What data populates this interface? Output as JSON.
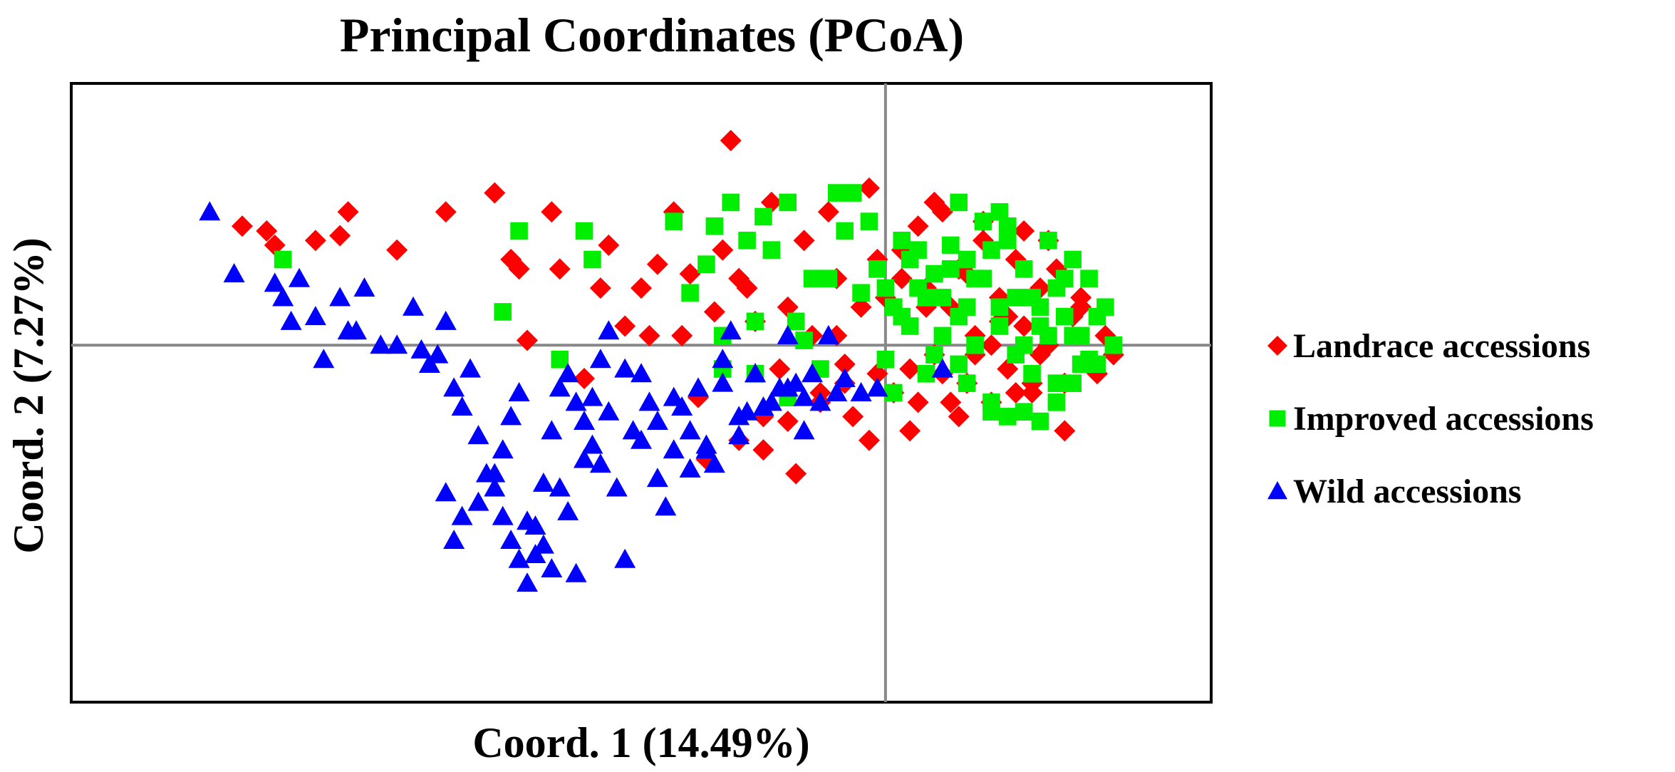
{
  "chart_data": {
    "type": "scatter",
    "title": "Principal Coordinates (PCoA)",
    "xlabel": "Coord. 1 (14.49%)",
    "ylabel": "Coord. 2 (7.27%)",
    "xlim": [
      -1,
      0.4
    ],
    "ylim": [
      -0.75,
      0.55
    ],
    "grid": false,
    "reference_lines": {
      "x": 0,
      "y": 0
    },
    "legend_position": "right",
    "series": [
      {
        "name": "Landrace accessions",
        "marker": "diamond",
        "color": "#ff0000",
        "x": [
          -0.79,
          -0.76,
          -0.75,
          -0.7,
          -0.67,
          -0.66,
          -0.6,
          -0.54,
          -0.48,
          -0.46,
          -0.45,
          -0.44,
          -0.41,
          -0.4,
          -0.37,
          -0.35,
          -0.34,
          -0.32,
          -0.3,
          -0.29,
          -0.28,
          -0.26,
          -0.24,
          -0.23,
          -0.22,
          -0.21,
          -0.2,
          -0.19,
          -0.18,
          -0.17,
          -0.16,
          -0.15,
          -0.14,
          -0.13,
          -0.12,
          -0.11,
          -0.1,
          -0.09,
          -0.08,
          -0.07,
          -0.06,
          -0.05,
          -0.04,
          -0.03,
          -0.02,
          -0.01,
          0.0,
          0.01,
          0.02,
          0.03,
          0.04,
          0.05,
          0.06,
          0.07,
          0.08,
          0.09,
          0.1,
          0.11,
          0.12,
          0.13,
          0.14,
          0.15,
          0.16,
          0.17,
          0.18,
          0.19,
          0.2,
          0.21,
          0.22,
          0.23,
          0.24,
          0.25,
          0.26,
          0.27,
          0.28,
          -0.15,
          -0.08,
          -0.05,
          -0.02,
          0.04,
          0.06,
          0.1,
          0.12,
          0.16,
          0.2,
          0.22,
          0.14,
          0.08,
          0.02,
          -0.01,
          0.05,
          0.09,
          0.13,
          0.17,
          0.19,
          -0.25,
          -0.18,
          -0.12,
          -0.06,
          0.03,
          0.07,
          0.11,
          0.15,
          0.18,
          0.24
        ],
        "y": [
          0.25,
          0.24,
          0.21,
          0.22,
          0.23,
          0.28,
          0.2,
          0.28,
          0.32,
          0.18,
          0.16,
          0.01,
          0.28,
          0.16,
          -0.07,
          0.12,
          0.21,
          0.04,
          0.12,
          0.02,
          0.17,
          0.28,
          0.15,
          -0.11,
          -0.24,
          0.07,
          0.2,
          0.43,
          -0.2,
          0.12,
          0.05,
          -0.15,
          0.3,
          -0.05,
          0.08,
          -0.27,
          0.22,
          0.02,
          -0.1,
          0.28,
          0.14,
          -0.04,
          -0.15,
          0.08,
          0.33,
          0.18,
          0.1,
          -0.1,
          0.2,
          -0.05,
          0.25,
          0.12,
          -0.02,
          0.28,
          0.08,
          -0.15,
          0.15,
          0.02,
          0.22,
          -0.12,
          0.1,
          -0.05,
          0.18,
          0.04,
          -0.1,
          0.12,
          0.0,
          0.16,
          -0.08,
          0.06,
          0.1,
          -0.04,
          -0.06,
          0.02,
          -0.02,
          -0.22,
          -0.12,
          -0.08,
          -0.2,
          -0.12,
          0.3,
          -0.08,
          0.26,
          -0.1,
          0.22,
          -0.18,
          0.05,
          -0.12,
          0.14,
          -0.06,
          0.08,
          0.16,
          0.0,
          0.24,
          -0.02,
          0.02,
          0.14,
          -0.16,
          0.02,
          -0.18,
          -0.06,
          -0.02,
          0.06,
          -0.08,
          0.08
        ]
      },
      {
        "name": "Improved accessions",
        "marker": "square",
        "color": "#00ee00",
        "x": [
          -0.74,
          -0.45,
          -0.37,
          -0.36,
          -0.47,
          -0.4,
          -0.26,
          -0.21,
          -0.19,
          -0.17,
          -0.15,
          -0.12,
          -0.11,
          -0.09,
          -0.06,
          -0.05,
          -0.04,
          -0.03,
          -0.02,
          -0.01,
          0.0,
          0.01,
          0.02,
          0.03,
          0.04,
          0.05,
          0.06,
          0.07,
          0.08,
          0.09,
          0.1,
          0.11,
          0.12,
          0.13,
          0.14,
          0.15,
          0.16,
          0.17,
          0.18,
          0.19,
          0.2,
          0.21,
          0.22,
          0.23,
          0.24,
          0.25,
          0.26,
          0.27,
          0.28,
          -0.24,
          -0.22,
          -0.2,
          -0.16,
          -0.14,
          -0.1,
          -0.08,
          -0.07,
          0.0,
          0.02,
          0.04,
          0.06,
          0.08,
          0.1,
          0.12,
          0.14,
          0.16,
          0.18,
          0.2,
          0.22,
          0.24,
          0.26,
          -0.16,
          -0.2,
          -0.12,
          0.01,
          0.03,
          0.05,
          0.07,
          0.09,
          0.11,
          0.13,
          0.15,
          0.17,
          0.19,
          0.21,
          0.23,
          0.25,
          0.13,
          0.15,
          0.17,
          0.19,
          0.21,
          0.23,
          0.09,
          0.14,
          0.1
        ],
        "y": [
          0.18,
          0.24,
          0.24,
          0.18,
          0.07,
          -0.03,
          0.26,
          0.25,
          0.3,
          0.22,
          0.27,
          0.3,
          0.05,
          0.14,
          0.32,
          0.24,
          0.32,
          0.11,
          0.26,
          0.16,
          0.12,
          0.08,
          0.22,
          0.04,
          0.2,
          0.1,
          0.15,
          0.02,
          0.21,
          0.06,
          0.18,
          0.0,
          0.14,
          0.2,
          0.08,
          0.25,
          -0.02,
          0.16,
          0.1,
          0.04,
          0.22,
          0.12,
          0.06,
          0.18,
          0.02,
          0.14,
          -0.04,
          0.08,
          0.0,
          0.11,
          0.17,
          0.02,
          -0.06,
          0.2,
          0.01,
          -0.05,
          0.14,
          -0.03,
          0.06,
          0.12,
          -0.02,
          0.16,
          -0.08,
          0.26,
          0.04,
          0.1,
          -0.06,
          0.02,
          0.14,
          -0.04,
          0.06,
          0.05,
          -0.05,
          -0.11,
          -0.1,
          0.18,
          -0.06,
          0.1,
          -0.04,
          0.14,
          -0.12,
          0.22,
          0.0,
          0.08,
          -0.08,
          0.02,
          -0.03,
          -0.14,
          -0.15,
          -0.14,
          -0.16,
          -0.12,
          -0.08,
          0.3,
          0.28,
          0.08
        ]
      },
      {
        "name": "Wild accessions",
        "marker": "triangle",
        "color": "#0000ff",
        "x": [
          -0.83,
          -0.8,
          -0.75,
          -0.74,
          -0.73,
          -0.72,
          -0.7,
          -0.69,
          -0.67,
          -0.66,
          -0.65,
          -0.64,
          -0.62,
          -0.6,
          -0.58,
          -0.57,
          -0.56,
          -0.55,
          -0.54,
          -0.53,
          -0.52,
          -0.51,
          -0.5,
          -0.49,
          -0.48,
          -0.47,
          -0.46,
          -0.45,
          -0.44,
          -0.43,
          -0.42,
          -0.41,
          -0.4,
          -0.39,
          -0.38,
          -0.37,
          -0.36,
          -0.35,
          -0.34,
          -0.33,
          -0.32,
          -0.31,
          -0.3,
          -0.29,
          -0.28,
          -0.27,
          -0.26,
          -0.25,
          -0.24,
          -0.23,
          -0.22,
          -0.21,
          -0.2,
          -0.19,
          -0.18,
          -0.17,
          -0.16,
          -0.15,
          -0.13,
          -0.12,
          -0.11,
          -0.1,
          -0.09,
          -0.08,
          -0.07,
          -0.06,
          -0.05,
          -0.03,
          -0.01,
          0.07,
          -0.54,
          -0.53,
          -0.52,
          -0.5,
          -0.48,
          -0.47,
          -0.46,
          -0.45,
          -0.44,
          -0.43,
          -0.42,
          -0.41,
          -0.4,
          -0.39,
          -0.38,
          -0.37,
          -0.36,
          -0.35,
          -0.34,
          -0.32,
          -0.3,
          -0.28,
          -0.26,
          -0.24,
          -0.22,
          -0.2,
          -0.18,
          -0.16,
          -0.14,
          -0.12,
          -0.1
        ],
        "y": [
          0.28,
          0.15,
          0.13,
          0.1,
          0.05,
          0.14,
          0.06,
          -0.03,
          0.1,
          0.03,
          0.03,
          0.12,
          0.0,
          0.0,
          0.08,
          -0.01,
          -0.04,
          -0.02,
          0.05,
          -0.09,
          -0.13,
          -0.05,
          -0.19,
          -0.27,
          -0.3,
          -0.36,
          -0.41,
          -0.45,
          -0.5,
          -0.38,
          -0.42,
          -0.47,
          -0.3,
          -0.35,
          -0.48,
          -0.24,
          -0.11,
          -0.03,
          0.03,
          -0.3,
          -0.45,
          -0.18,
          -0.06,
          -0.12,
          -0.28,
          -0.34,
          -0.22,
          -0.13,
          -0.18,
          -0.09,
          -0.21,
          -0.25,
          -0.03,
          0.03,
          -0.19,
          -0.14,
          -0.06,
          -0.13,
          -0.09,
          0.02,
          -0.08,
          -0.11,
          -0.06,
          -0.12,
          0.02,
          -0.1,
          -0.07,
          -0.1,
          -0.09,
          -0.05,
          -0.31,
          -0.41,
          -0.36,
          -0.33,
          -0.27,
          -0.22,
          -0.15,
          -0.1,
          -0.37,
          -0.44,
          -0.29,
          -0.18,
          -0.09,
          -0.06,
          -0.12,
          -0.16,
          -0.21,
          -0.25,
          -0.14,
          -0.05,
          -0.2,
          -0.16,
          -0.11,
          -0.26,
          -0.22,
          -0.08,
          -0.15,
          -0.06,
          -0.12,
          -0.09,
          -0.18
        ]
      }
    ]
  }
}
